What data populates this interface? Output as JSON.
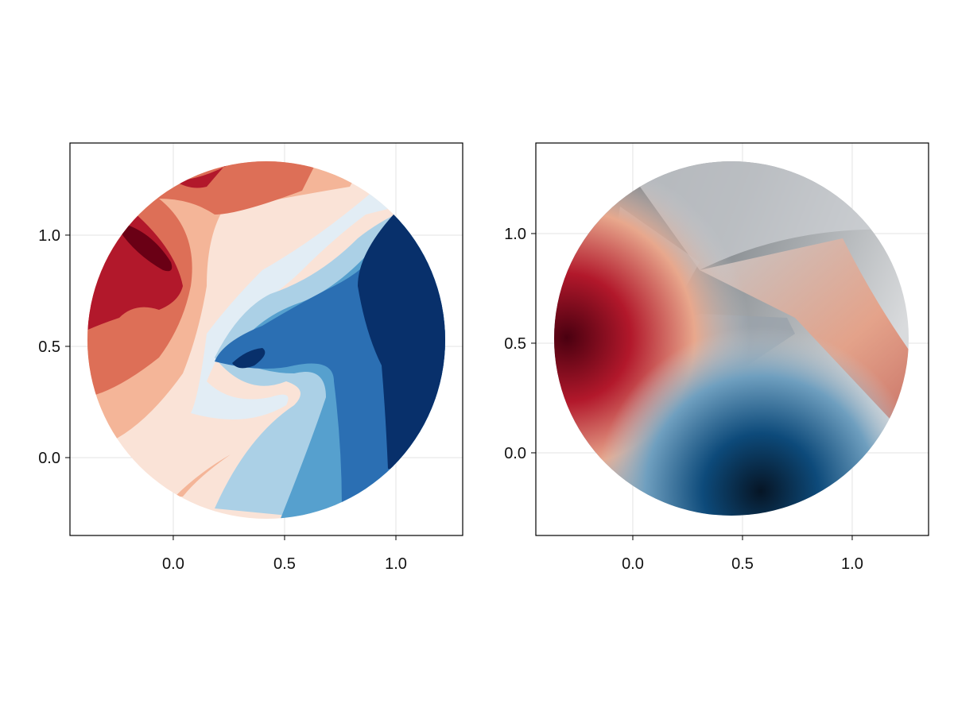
{
  "chart_data": [
    {
      "type": "contourf",
      "xlim": [
        -0.464,
        1.3
      ],
      "ylim": [
        -0.35,
        1.414
      ],
      "xticks": [
        {
          "value": 0,
          "label": "0.0"
        },
        {
          "value": 0.5,
          "label": "0.5"
        },
        {
          "value": 1,
          "label": "1.0"
        }
      ],
      "yticks": [
        {
          "value": 0,
          "label": "0.0"
        },
        {
          "value": 0.5,
          "label": "0.5"
        },
        {
          "value": 1,
          "label": "1.0"
        }
      ],
      "grid": true
    },
    {
      "type": "surface",
      "xlim": [
        -0.442,
        1.348
      ],
      "ylim": [
        -0.377,
        1.413
      ],
      "xticks": [
        {
          "value": 0,
          "label": "0.0"
        },
        {
          "value": 0.5,
          "label": "0.5"
        },
        {
          "value": 1,
          "label": "1.0"
        }
      ],
      "yticks": [
        {
          "value": 0,
          "label": "0.0"
        },
        {
          "value": 0.5,
          "label": "0.5"
        },
        {
          "value": 1,
          "label": "1.0"
        }
      ],
      "grid": true
    }
  ]
}
